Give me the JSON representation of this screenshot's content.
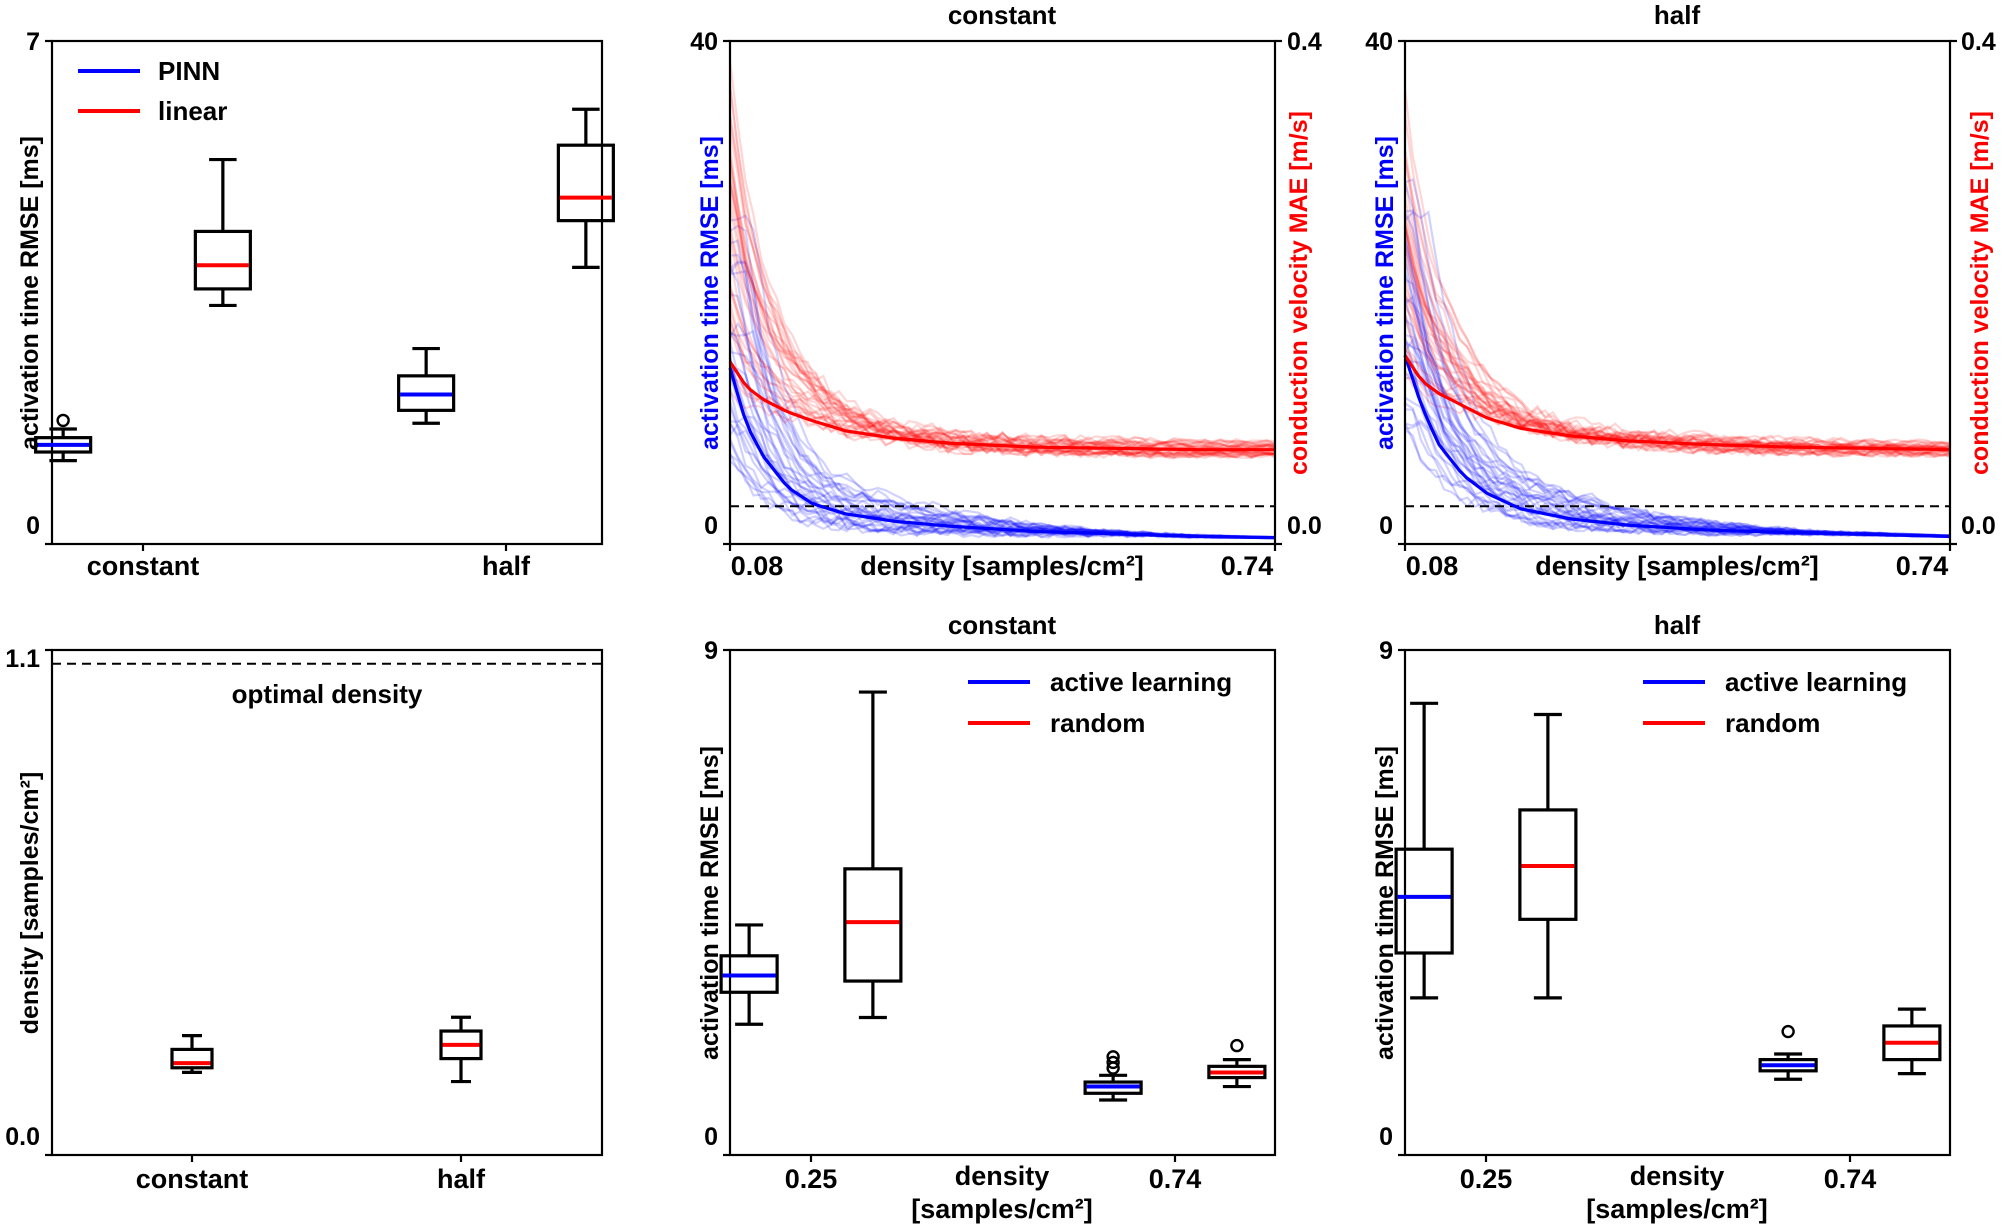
{
  "chart_data": [
    {
      "type": "box",
      "panel": "top-left",
      "title": "",
      "ylabel": "activation time RMSE [ms]",
      "ylim": [
        0,
        7
      ],
      "yticks": [
        "0",
        "7"
      ],
      "categories": [
        "constant",
        "half"
      ],
      "legend": {
        "position": "top-left",
        "entries": [
          {
            "label": "PINN",
            "color": "#0000ff"
          },
          {
            "label": "linear",
            "color": "#ff0000"
          }
        ]
      },
      "boxes": [
        {
          "cat": 0,
          "offset": -0.22,
          "median_color": "#0000ff",
          "whislo": 1.16,
          "q1": 1.28,
          "med": 1.38,
          "q3": 1.48,
          "whishi": 1.6,
          "fliers": [
            1.72
          ]
        },
        {
          "cat": 0,
          "offset": 0.22,
          "median_color": "#ff0000",
          "whislo": 3.32,
          "q1": 3.55,
          "med": 3.88,
          "q3": 4.35,
          "whishi": 5.35,
          "fliers": []
        },
        {
          "cat": 1,
          "offset": -0.22,
          "median_color": "#0000ff",
          "whislo": 1.68,
          "q1": 1.86,
          "med": 2.08,
          "q3": 2.34,
          "whishi": 2.72,
          "fliers": []
        },
        {
          "cat": 1,
          "offset": 0.22,
          "median_color": "#ff0000",
          "whislo": 3.85,
          "q1": 4.5,
          "med": 4.82,
          "q3": 5.55,
          "whishi": 6.05,
          "fliers": []
        }
      ]
    },
    {
      "type": "line",
      "panel": "top-middle",
      "title": "constant",
      "xlabel": "density [samples/cm²]",
      "xticks": [
        "0.08",
        "0.74"
      ],
      "xlim": [
        0.08,
        0.74
      ],
      "ylabel_left": "activation time RMSE [ms]",
      "ylabel_left_color": "#0000ff",
      "ylim_left": [
        0,
        40
      ],
      "yticks_left": [
        "0",
        "40"
      ],
      "ylabel_right": "conduction velocity MAE [m/s]",
      "ylabel_right_color": "#ff0000",
      "ylim_right": [
        0.0,
        0.4
      ],
      "yticks_right": [
        "0.0",
        "0.4"
      ],
      "reference_line_left": 3,
      "series": [
        {
          "name": "activation time RMSE (mean)",
          "axis": "left",
          "color": "#0000ff",
          "x": [
            0.08,
            0.1,
            0.12,
            0.15,
            0.18,
            0.22,
            0.28,
            0.35,
            0.45,
            0.55,
            0.65,
            0.74
          ],
          "y": [
            14,
            9.5,
            7,
            4.5,
            3.2,
            2.4,
            1.8,
            1.4,
            1.0,
            0.8,
            0.6,
            0.5
          ]
        },
        {
          "name": "conduction velocity MAE (mean)",
          "axis": "right",
          "color": "#ff0000",
          "x": [
            0.08,
            0.1,
            0.12,
            0.15,
            0.18,
            0.22,
            0.28,
            0.35,
            0.45,
            0.55,
            0.65,
            0.74
          ],
          "y": [
            0.145,
            0.125,
            0.115,
            0.105,
            0.098,
            0.09,
            0.084,
            0.08,
            0.077,
            0.076,
            0.075,
            0.075
          ]
        }
      ]
    },
    {
      "type": "line",
      "panel": "top-right",
      "title": "half",
      "xlabel": "density [samples/cm²]",
      "xticks": [
        "0.08",
        "0.74"
      ],
      "xlim": [
        0.08,
        0.74
      ],
      "ylabel_left": "activation time RMSE [ms]",
      "ylabel_left_color": "#0000ff",
      "ylim_left": [
        0,
        40
      ],
      "yticks_left": [
        "0",
        "40"
      ],
      "ylabel_right": "conduction velocity MAE [m/s]",
      "ylabel_right_color": "#ff0000",
      "ylim_right": [
        0.0,
        0.4
      ],
      "yticks_right": [
        "0.0",
        "0.4"
      ],
      "reference_line_left": 3,
      "series": [
        {
          "name": "activation time RMSE (mean)",
          "axis": "left",
          "color": "#0000ff",
          "x": [
            0.08,
            0.1,
            0.12,
            0.15,
            0.18,
            0.22,
            0.28,
            0.35,
            0.45,
            0.55,
            0.65,
            0.74
          ],
          "y": [
            15,
            11,
            8,
            5.5,
            4,
            2.8,
            2.0,
            1.5,
            1.1,
            0.9,
            0.75,
            0.6
          ]
        },
        {
          "name": "conduction velocity MAE (mean)",
          "axis": "right",
          "color": "#ff0000",
          "x": [
            0.08,
            0.1,
            0.12,
            0.15,
            0.18,
            0.22,
            0.28,
            0.35,
            0.45,
            0.55,
            0.65,
            0.74
          ],
          "y": [
            0.15,
            0.13,
            0.12,
            0.11,
            0.1,
            0.092,
            0.086,
            0.082,
            0.079,
            0.077,
            0.076,
            0.075
          ]
        }
      ]
    },
    {
      "type": "box",
      "panel": "bottom-left",
      "title": "",
      "ylabel": "density [samples/cm²]",
      "ylim": [
        0.0,
        1.1
      ],
      "yticks": [
        "0.0",
        "1.1"
      ],
      "categories": [
        "constant",
        "half"
      ],
      "reference_line": {
        "value": 1.07,
        "label": "optimal density"
      },
      "boxes": [
        {
          "cat": 0,
          "offset": 0,
          "median_color": "#ff0000",
          "whislo": 0.18,
          "q1": 0.19,
          "med": 0.2,
          "q3": 0.23,
          "whishi": 0.26,
          "fliers": []
        },
        {
          "cat": 1,
          "offset": 0,
          "median_color": "#ff0000",
          "whislo": 0.16,
          "q1": 0.21,
          "med": 0.24,
          "q3": 0.27,
          "whishi": 0.3,
          "fliers": []
        }
      ]
    },
    {
      "type": "box",
      "panel": "bottom-middle",
      "title": "constant",
      "ylabel": "activation time RMSE [ms]",
      "ylim": [
        0,
        9
      ],
      "yticks": [
        "0",
        "9"
      ],
      "categories": [
        "0.25",
        "0.74"
      ],
      "xlabel": "density [samples/cm²]",
      "legend": {
        "position": "top-right",
        "entries": [
          {
            "label": "active learning",
            "color": "#0000ff"
          },
          {
            "label": "random",
            "color": "#ff0000"
          }
        ]
      },
      "boxes": [
        {
          "cat": 0,
          "offset": -0.17,
          "median_color": "#0000ff",
          "whislo": 2.33,
          "q1": 2.9,
          "med": 3.2,
          "q3": 3.55,
          "whishi": 4.1,
          "fliers": []
        },
        {
          "cat": 0,
          "offset": 0.17,
          "median_color": "#ff0000",
          "whislo": 2.45,
          "q1": 3.1,
          "med": 4.15,
          "q3": 5.1,
          "whishi": 8.25,
          "fliers": []
        },
        {
          "cat": 1,
          "offset": -0.17,
          "median_color": "#0000ff",
          "whislo": 0.98,
          "q1": 1.1,
          "med": 1.22,
          "q3": 1.3,
          "whishi": 1.42,
          "fliers": [
            1.55,
            1.65,
            1.75
          ]
        },
        {
          "cat": 1,
          "offset": 0.17,
          "median_color": "#ff0000",
          "whislo": 1.22,
          "q1": 1.38,
          "med": 1.47,
          "q3": 1.58,
          "whishi": 1.7,
          "fliers": [
            1.95
          ]
        }
      ]
    },
    {
      "type": "box",
      "panel": "bottom-right",
      "title": "half",
      "ylabel": "activation time RMSE [ms]",
      "ylim": [
        0,
        9
      ],
      "yticks": [
        "0",
        "9"
      ],
      "categories": [
        "0.25",
        "0.74"
      ],
      "xlabel": "density [samples/cm²]",
      "legend": {
        "position": "top-right",
        "entries": [
          {
            "label": "active learning",
            "color": "#0000ff"
          },
          {
            "label": "random",
            "color": "#ff0000"
          }
        ]
      },
      "boxes": [
        {
          "cat": 0,
          "offset": -0.17,
          "median_color": "#0000ff",
          "whislo": 2.8,
          "q1": 3.6,
          "med": 4.6,
          "q3": 5.45,
          "whishi": 8.05,
          "fliers": []
        },
        {
          "cat": 0,
          "offset": 0.17,
          "median_color": "#ff0000",
          "whislo": 2.8,
          "q1": 4.2,
          "med": 5.15,
          "q3": 6.15,
          "whishi": 7.85,
          "fliers": []
        },
        {
          "cat": 1,
          "offset": -0.17,
          "median_color": "#0000ff",
          "whislo": 1.35,
          "q1": 1.5,
          "med": 1.6,
          "q3": 1.7,
          "whishi": 1.8,
          "fliers": [
            2.2
          ]
        },
        {
          "cat": 1,
          "offset": 0.17,
          "median_color": "#ff0000",
          "whislo": 1.45,
          "q1": 1.7,
          "med": 2.0,
          "q3": 2.3,
          "whishi": 2.6,
          "fliers": []
        }
      ]
    }
  ]
}
